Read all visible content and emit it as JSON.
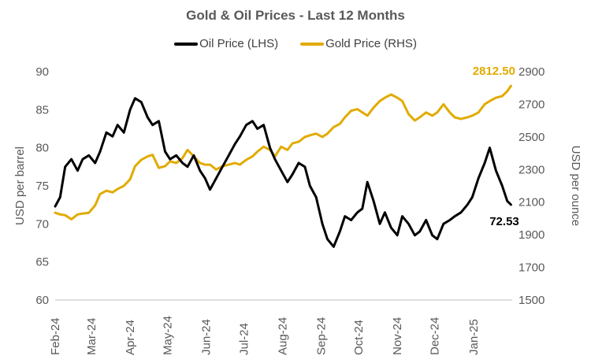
{
  "chart_data": {
    "type": "line",
    "title": "Gold & Oil Prices - Last 12 Months",
    "legend": {
      "placement": "top",
      "entries": [
        "Oil Price (LHS)",
        "Gold Price (RHS)"
      ]
    },
    "x_tick_labels": [
      "Feb-24",
      "Mar-24",
      "Apr-24",
      "May-24",
      "Jun-24",
      "Jul-24",
      "Aug-24",
      "Sep-24",
      "Oct-24",
      "Nov-24",
      "Dec-24",
      "Jan-25"
    ],
    "y_left": {
      "label": "USD per barrel",
      "range": [
        60,
        90
      ],
      "ticks": [
        60,
        65,
        70,
        75,
        80,
        85,
        90
      ]
    },
    "y_right": {
      "label": "USD per ounce",
      "range": [
        1500,
        2900
      ],
      "ticks": [
        1500,
        1700,
        1900,
        2100,
        2300,
        2500,
        2700,
        2900
      ]
    },
    "grid": false,
    "series": [
      {
        "name": "Oil Price (LHS)",
        "axis": "left",
        "color": "#000000",
        "end_label": "72.53",
        "x": [
          "2024-02-01",
          "2024-02-05",
          "2024-02-09",
          "2024-02-14",
          "2024-02-19",
          "2024-02-23",
          "2024-02-28",
          "2024-03-04",
          "2024-03-08",
          "2024-03-13",
          "2024-03-18",
          "2024-03-22",
          "2024-03-27",
          "2024-04-01",
          "2024-04-05",
          "2024-04-10",
          "2024-04-15",
          "2024-04-19",
          "2024-04-24",
          "2024-04-29",
          "2024-05-03",
          "2024-05-08",
          "2024-05-13",
          "2024-05-17",
          "2024-05-22",
          "2024-05-27",
          "2024-05-31",
          "2024-06-04",
          "2024-06-09",
          "2024-06-14",
          "2024-06-19",
          "2024-06-24",
          "2024-06-28",
          "2024-07-03",
          "2024-07-08",
          "2024-07-12",
          "2024-07-17",
          "2024-07-22",
          "2024-07-26",
          "2024-07-31",
          "2024-08-05",
          "2024-08-09",
          "2024-08-14",
          "2024-08-19",
          "2024-08-23",
          "2024-08-28",
          "2024-09-02",
          "2024-09-06",
          "2024-09-11",
          "2024-09-16",
          "2024-09-20",
          "2024-09-25",
          "2024-09-30",
          "2024-10-04",
          "2024-10-08",
          "2024-10-13",
          "2024-10-18",
          "2024-10-22",
          "2024-10-27",
          "2024-11-01",
          "2024-11-05",
          "2024-11-10",
          "2024-11-15",
          "2024-11-19",
          "2024-11-24",
          "2024-11-29",
          "2024-12-03",
          "2024-12-08",
          "2024-12-13",
          "2024-12-17",
          "2024-12-22",
          "2024-12-27",
          "2024-12-31",
          "2025-01-05",
          "2025-01-10",
          "2025-01-14",
          "2025-01-19",
          "2025-01-24",
          "2025-01-28",
          "2025-01-31"
        ],
        "values": [
          72.3,
          73.5,
          77.5,
          78.5,
          77.0,
          78.5,
          79.0,
          78.0,
          79.5,
          82.0,
          81.5,
          83.0,
          82.0,
          85.0,
          86.5,
          86.0,
          84.0,
          83.0,
          83.5,
          79.5,
          78.5,
          79.0,
          78.0,
          77.5,
          79.0,
          77.0,
          76.0,
          74.5,
          76.0,
          77.5,
          79.0,
          80.5,
          81.5,
          83.0,
          83.5,
          82.5,
          83.0,
          80.0,
          78.5,
          77.0,
          75.5,
          76.5,
          78.0,
          77.5,
          75.0,
          73.5,
          70.0,
          68.0,
          67.0,
          69.0,
          71.0,
          70.5,
          71.5,
          72.0,
          75.5,
          73.0,
          70.0,
          71.5,
          69.5,
          68.5,
          71.0,
          70.0,
          68.5,
          69.0,
          70.5,
          68.5,
          68.0,
          70.0,
          70.5,
          71.0,
          71.5,
          72.5,
          73.5,
          76.0,
          78.0,
          80.0,
          77.0,
          75.0,
          73.0,
          72.53
        ]
      },
      {
        "name": "Gold Price (RHS)",
        "axis": "right",
        "color": "#E1AB00",
        "end_label": "2812.50",
        "x": [
          "2024-02-01",
          "2024-02-05",
          "2024-02-09",
          "2024-02-14",
          "2024-02-19",
          "2024-02-23",
          "2024-02-28",
          "2024-03-04",
          "2024-03-08",
          "2024-03-13",
          "2024-03-18",
          "2024-03-22",
          "2024-03-27",
          "2024-04-01",
          "2024-04-05",
          "2024-04-10",
          "2024-04-15",
          "2024-04-19",
          "2024-04-24",
          "2024-04-29",
          "2024-05-03",
          "2024-05-08",
          "2024-05-13",
          "2024-05-17",
          "2024-05-22",
          "2024-05-27",
          "2024-05-31",
          "2024-06-04",
          "2024-06-09",
          "2024-06-14",
          "2024-06-19",
          "2024-06-24",
          "2024-06-28",
          "2024-07-03",
          "2024-07-08",
          "2024-07-12",
          "2024-07-17",
          "2024-07-22",
          "2024-07-26",
          "2024-07-31",
          "2024-08-05",
          "2024-08-09",
          "2024-08-14",
          "2024-08-19",
          "2024-08-23",
          "2024-08-28",
          "2024-09-02",
          "2024-09-06",
          "2024-09-11",
          "2024-09-16",
          "2024-09-20",
          "2024-09-25",
          "2024-09-30",
          "2024-10-04",
          "2024-10-08",
          "2024-10-13",
          "2024-10-18",
          "2024-10-22",
          "2024-10-27",
          "2024-11-01",
          "2024-11-05",
          "2024-11-10",
          "2024-11-15",
          "2024-11-19",
          "2024-11-24",
          "2024-11-29",
          "2024-12-03",
          "2024-12-08",
          "2024-12-13",
          "2024-12-17",
          "2024-12-22",
          "2024-12-27",
          "2024-12-31",
          "2025-01-05",
          "2025-01-10",
          "2025-01-14",
          "2025-01-19",
          "2025-01-24",
          "2025-01-28",
          "2025-01-31"
        ],
        "values": [
          2035,
          2025,
          2020,
          1995,
          2025,
          2030,
          2035,
          2080,
          2150,
          2170,
          2160,
          2180,
          2200,
          2240,
          2320,
          2360,
          2380,
          2390,
          2310,
          2320,
          2350,
          2340,
          2370,
          2420,
          2380,
          2340,
          2330,
          2330,
          2300,
          2320,
          2330,
          2340,
          2330,
          2360,
          2380,
          2410,
          2440,
          2420,
          2380,
          2440,
          2420,
          2460,
          2470,
          2500,
          2510,
          2520,
          2500,
          2520,
          2560,
          2580,
          2620,
          2660,
          2670,
          2650,
          2630,
          2680,
          2720,
          2740,
          2760,
          2740,
          2720,
          2640,
          2600,
          2620,
          2650,
          2630,
          2650,
          2700,
          2650,
          2620,
          2610,
          2620,
          2630,
          2650,
          2700,
          2720,
          2740,
          2750,
          2780,
          2812.5
        ]
      }
    ]
  }
}
